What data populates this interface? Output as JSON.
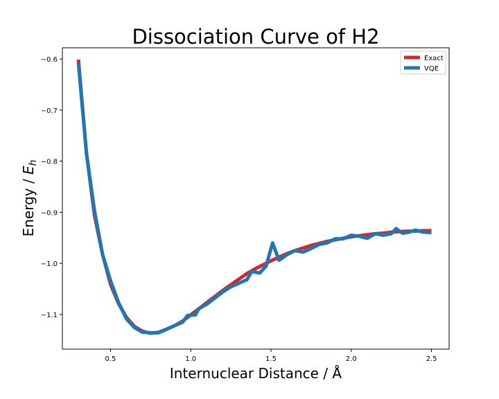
{
  "chart_data": {
    "type": "line",
    "title": "Dissociation Curve of H2",
    "xlabel": "Internuclear Distance / Å",
    "ylabel_main": "Energy / ",
    "ylabel_sym": "E",
    "ylabel_sub": "h",
    "xlim": [
      0.2,
      2.61
    ],
    "ylim": [
      -1.168,
      -0.578
    ],
    "xticks": [
      0.5,
      1.0,
      1.5,
      2.0,
      2.5
    ],
    "xtick_labels": [
      "0.5",
      "1.0",
      "1.5",
      "2.0",
      "2.5"
    ],
    "yticks": [
      -0.6,
      -0.7,
      -0.8,
      -0.9,
      -1.0,
      -1.1
    ],
    "ytick_labels": [
      "−0.6",
      "−0.7",
      "−0.8",
      "−0.9",
      "−1.0",
      "−1.1"
    ],
    "grid": false,
    "legend_position": "top-right",
    "series": [
      {
        "name": "Exact",
        "color": "#d62728",
        "x": [
          0.3,
          0.35,
          0.4,
          0.45,
          0.5,
          0.55,
          0.6,
          0.65,
          0.7,
          0.75,
          0.8,
          0.85,
          0.9,
          0.95,
          1.0,
          1.05,
          1.1,
          1.15,
          1.2,
          1.25,
          1.3,
          1.35,
          1.4,
          1.45,
          1.5,
          1.55,
          1.6,
          1.65,
          1.7,
          1.75,
          1.8,
          1.85,
          1.9,
          1.95,
          2.0,
          2.05,
          2.1,
          2.15,
          2.2,
          2.25,
          2.3,
          2.35,
          2.4,
          2.45,
          2.5
        ],
        "y": [
          -0.601,
          -0.784,
          -0.906,
          -0.982,
          -1.041,
          -1.079,
          -1.106,
          -1.124,
          -1.133,
          -1.137,
          -1.135,
          -1.129,
          -1.122,
          -1.113,
          -1.101,
          -1.089,
          -1.077,
          -1.065,
          -1.053,
          -1.042,
          -1.031,
          -1.02,
          -1.011,
          -1.003,
          -0.995,
          -0.988,
          -0.981,
          -0.975,
          -0.97,
          -0.965,
          -0.961,
          -0.957,
          -0.954,
          -0.951,
          -0.948,
          -0.946,
          -0.944,
          -0.942,
          -0.941,
          -0.939,
          -0.938,
          -0.937,
          -0.937,
          -0.936,
          -0.936
        ]
      },
      {
        "name": "VQE",
        "color": "#1f77b4",
        "x": [
          0.3,
          0.35,
          0.4,
          0.45,
          0.5,
          0.55,
          0.6,
          0.65,
          0.7,
          0.75,
          0.8,
          0.85,
          0.9,
          0.95,
          0.98,
          1.03,
          1.05,
          1.1,
          1.15,
          1.2,
          1.25,
          1.3,
          1.35,
          1.38,
          1.43,
          1.47,
          1.51,
          1.55,
          1.6,
          1.65,
          1.7,
          1.75,
          1.8,
          1.85,
          1.9,
          1.95,
          2.0,
          2.05,
          2.1,
          2.15,
          2.2,
          2.25,
          2.28,
          2.32,
          2.36,
          2.4,
          2.45,
          2.5
        ],
        "y": [
          -0.608,
          -0.784,
          -0.897,
          -0.982,
          -1.034,
          -1.077,
          -1.109,
          -1.126,
          -1.135,
          -1.136,
          -1.136,
          -1.129,
          -1.122,
          -1.115,
          -1.102,
          -1.101,
          -1.089,
          -1.08,
          -1.068,
          -1.056,
          -1.046,
          -1.039,
          -1.032,
          -1.016,
          -1.019,
          -1.005,
          -0.96,
          -0.994,
          -0.983,
          -0.975,
          -0.978,
          -0.971,
          -0.963,
          -0.96,
          -0.952,
          -0.952,
          -0.945,
          -0.947,
          -0.951,
          -0.942,
          -0.945,
          -0.942,
          -0.932,
          -0.941,
          -0.939,
          -0.935,
          -0.939,
          -0.94
        ]
      }
    ]
  }
}
